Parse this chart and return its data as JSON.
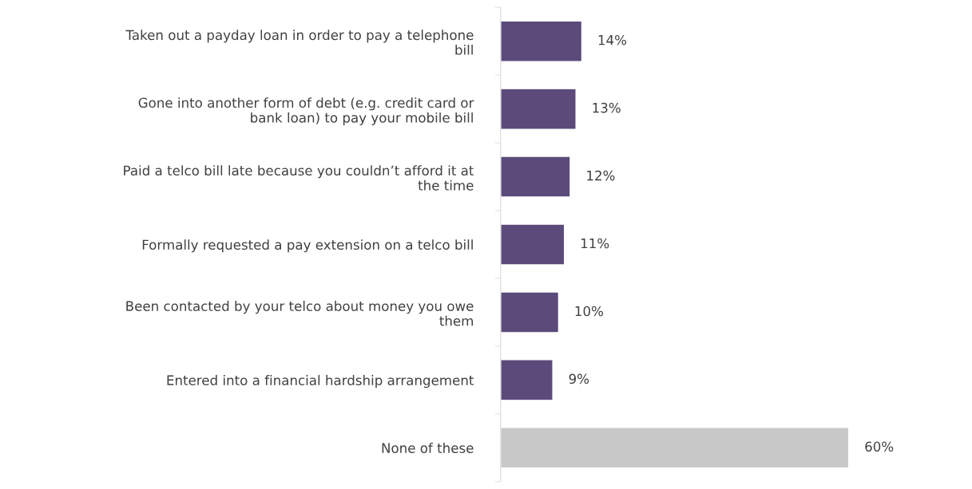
{
  "chart_data": {
    "type": "bar",
    "orientation": "horizontal",
    "categories": [
      "Taken out a payday loan in order to pay a telephone\nbill",
      "Gone into another form of debt (e.g. credit card or\nbank loan) to pay your mobile bill",
      "Paid a telco bill late because you couldn’t afford it at\nthe time",
      "Formally requested a pay extension on a telco bill",
      "Been contacted by your telco about money you owe\nthem",
      "Entered into a financial hardship arrangement",
      "None of these"
    ],
    "values": [
      14,
      13,
      12,
      11,
      10,
      9,
      60
    ],
    "colors": [
      "#5b4a7a",
      "#5b4a7a",
      "#5b4a7a",
      "#5b4a7a",
      "#5b4a7a",
      "#5b4a7a",
      "#c8c8c8"
    ],
    "value_labels": [
      "14%",
      "13%",
      "12%",
      "11%",
      "10%",
      "9%",
      "60%"
    ],
    "grid": false,
    "legend": false
  }
}
